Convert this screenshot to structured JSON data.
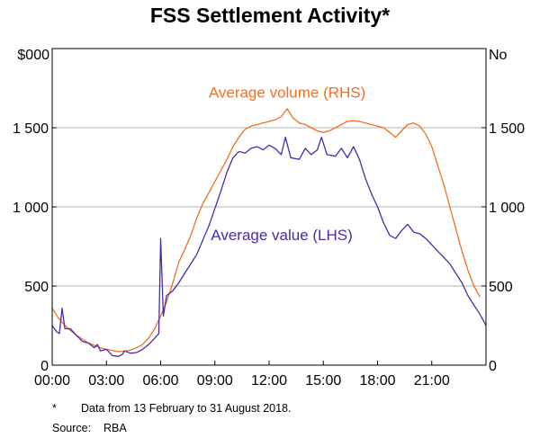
{
  "chart_data": {
    "type": "line",
    "title": "FSS Settlement Activity*",
    "left_axis_unit": "$000",
    "right_axis_unit": "No",
    "ylim": [
      0,
      2000
    ],
    "y_ticks": [
      0,
      500,
      1000,
      1500
    ],
    "y_tick_labels": [
      "0",
      "500",
      "1 000",
      "1 500"
    ],
    "x_range": [
      0,
      24
    ],
    "x_ticks": [
      0,
      3,
      6,
      9,
      12,
      15,
      18,
      21
    ],
    "x_tick_labels": [
      "00:00",
      "03:00",
      "06:00",
      "09:00",
      "12:00",
      "15:00",
      "18:00",
      "21:00"
    ],
    "gridlines": true,
    "series": [
      {
        "name": "Average volume (RHS)",
        "label": "Average volume (RHS)",
        "axis": "right",
        "color": "#f26f21",
        "points": [
          [
            0.0,
            360
          ],
          [
            0.33,
            300
          ],
          [
            0.67,
            255
          ],
          [
            1.0,
            220
          ],
          [
            1.33,
            190
          ],
          [
            1.67,
            165
          ],
          [
            2.0,
            140
          ],
          [
            2.33,
            125
          ],
          [
            2.67,
            110
          ],
          [
            3.0,
            100
          ],
          [
            3.33,
            92
          ],
          [
            3.67,
            85
          ],
          [
            4.0,
            88
          ],
          [
            4.33,
            95
          ],
          [
            4.67,
            110
          ],
          [
            5.0,
            130
          ],
          [
            5.33,
            170
          ],
          [
            5.67,
            230
          ],
          [
            6.0,
            310
          ],
          [
            6.33,
            400
          ],
          [
            6.67,
            520
          ],
          [
            7.0,
            650
          ],
          [
            7.33,
            730
          ],
          [
            7.67,
            820
          ],
          [
            8.0,
            930
          ],
          [
            8.33,
            1020
          ],
          [
            8.67,
            1090
          ],
          [
            9.0,
            1160
          ],
          [
            9.33,
            1230
          ],
          [
            9.67,
            1300
          ],
          [
            10.0,
            1380
          ],
          [
            10.33,
            1440
          ],
          [
            10.67,
            1490
          ],
          [
            11.0,
            1510
          ],
          [
            11.33,
            1520
          ],
          [
            11.67,
            1530
          ],
          [
            12.0,
            1540
          ],
          [
            12.33,
            1550
          ],
          [
            12.67,
            1570
          ],
          [
            13.0,
            1620
          ],
          [
            13.33,
            1560
          ],
          [
            13.67,
            1530
          ],
          [
            14.0,
            1520
          ],
          [
            14.33,
            1500
          ],
          [
            14.67,
            1480
          ],
          [
            15.0,
            1470
          ],
          [
            15.33,
            1480
          ],
          [
            15.67,
            1500
          ],
          [
            16.0,
            1520
          ],
          [
            16.33,
            1540
          ],
          [
            16.67,
            1545
          ],
          [
            17.0,
            1540
          ],
          [
            17.33,
            1530
          ],
          [
            17.67,
            1520
          ],
          [
            18.0,
            1510
          ],
          [
            18.33,
            1500
          ],
          [
            18.67,
            1470
          ],
          [
            19.0,
            1440
          ],
          [
            19.33,
            1480
          ],
          [
            19.67,
            1520
          ],
          [
            20.0,
            1530
          ],
          [
            20.33,
            1510
          ],
          [
            20.67,
            1460
          ],
          [
            21.0,
            1380
          ],
          [
            21.33,
            1260
          ],
          [
            21.67,
            1140
          ],
          [
            22.0,
            1000
          ],
          [
            22.33,
            860
          ],
          [
            22.67,
            720
          ],
          [
            23.0,
            600
          ],
          [
            23.33,
            500
          ],
          [
            23.67,
            430
          ]
        ]
      },
      {
        "name": "Average value (LHS)",
        "label": "Average value (LHS)",
        "axis": "left",
        "color": "#4b2aa8",
        "points": [
          [
            0.0,
            250
          ],
          [
            0.25,
            210
          ],
          [
            0.4,
            200
          ],
          [
            0.55,
            360
          ],
          [
            0.7,
            230
          ],
          [
            1.0,
            230
          ],
          [
            1.33,
            190
          ],
          [
            1.67,
            150
          ],
          [
            2.0,
            140
          ],
          [
            2.33,
            110
          ],
          [
            2.5,
            130
          ],
          [
            2.67,
            90
          ],
          [
            3.0,
            100
          ],
          [
            3.33,
            60
          ],
          [
            3.67,
            55
          ],
          [
            3.9,
            70
          ],
          [
            4.0,
            90
          ],
          [
            4.33,
            75
          ],
          [
            4.67,
            80
          ],
          [
            5.0,
            100
          ],
          [
            5.33,
            130
          ],
          [
            5.67,
            170
          ],
          [
            5.9,
            200
          ],
          [
            6.0,
            800
          ],
          [
            6.15,
            310
          ],
          [
            6.33,
            440
          ],
          [
            6.67,
            470
          ],
          [
            7.0,
            520
          ],
          [
            7.33,
            580
          ],
          [
            7.67,
            640
          ],
          [
            8.0,
            700
          ],
          [
            8.33,
            790
          ],
          [
            8.67,
            880
          ],
          [
            9.0,
            990
          ],
          [
            9.33,
            1100
          ],
          [
            9.67,
            1220
          ],
          [
            10.0,
            1310
          ],
          [
            10.33,
            1350
          ],
          [
            10.67,
            1340
          ],
          [
            11.0,
            1370
          ],
          [
            11.33,
            1380
          ],
          [
            11.67,
            1360
          ],
          [
            12.0,
            1390
          ],
          [
            12.33,
            1370
          ],
          [
            12.67,
            1330
          ],
          [
            12.9,
            1440
          ],
          [
            13.2,
            1310
          ],
          [
            13.67,
            1300
          ],
          [
            14.0,
            1370
          ],
          [
            14.33,
            1330
          ],
          [
            14.67,
            1360
          ],
          [
            14.9,
            1440
          ],
          [
            15.2,
            1330
          ],
          [
            15.67,
            1320
          ],
          [
            16.0,
            1370
          ],
          [
            16.33,
            1310
          ],
          [
            16.67,
            1380
          ],
          [
            17.0,
            1300
          ],
          [
            17.33,
            1180
          ],
          [
            17.67,
            1080
          ],
          [
            18.0,
            1000
          ],
          [
            18.33,
            900
          ],
          [
            18.67,
            820
          ],
          [
            19.0,
            800
          ],
          [
            19.33,
            850
          ],
          [
            19.67,
            890
          ],
          [
            20.0,
            840
          ],
          [
            20.33,
            830
          ],
          [
            20.67,
            800
          ],
          [
            21.0,
            760
          ],
          [
            21.33,
            720
          ],
          [
            21.67,
            680
          ],
          [
            22.0,
            640
          ],
          [
            22.33,
            580
          ],
          [
            22.67,
            520
          ],
          [
            23.0,
            440
          ],
          [
            23.33,
            380
          ],
          [
            23.67,
            320
          ],
          [
            24.0,
            250
          ]
        ]
      }
    ],
    "annotations": [
      {
        "text": "Average volume (RHS)",
        "series": "Average volume (RHS)",
        "x": 13.0,
        "y": 1690
      },
      {
        "text": "Average value (LHS)",
        "series": "Average value (LHS)",
        "x": 12.7,
        "y": 790
      }
    ]
  },
  "footnote": {
    "marker": "*",
    "text": "Data from 13 February to 31 August 2018."
  },
  "source": {
    "label": "Source:",
    "text": "RBA"
  }
}
